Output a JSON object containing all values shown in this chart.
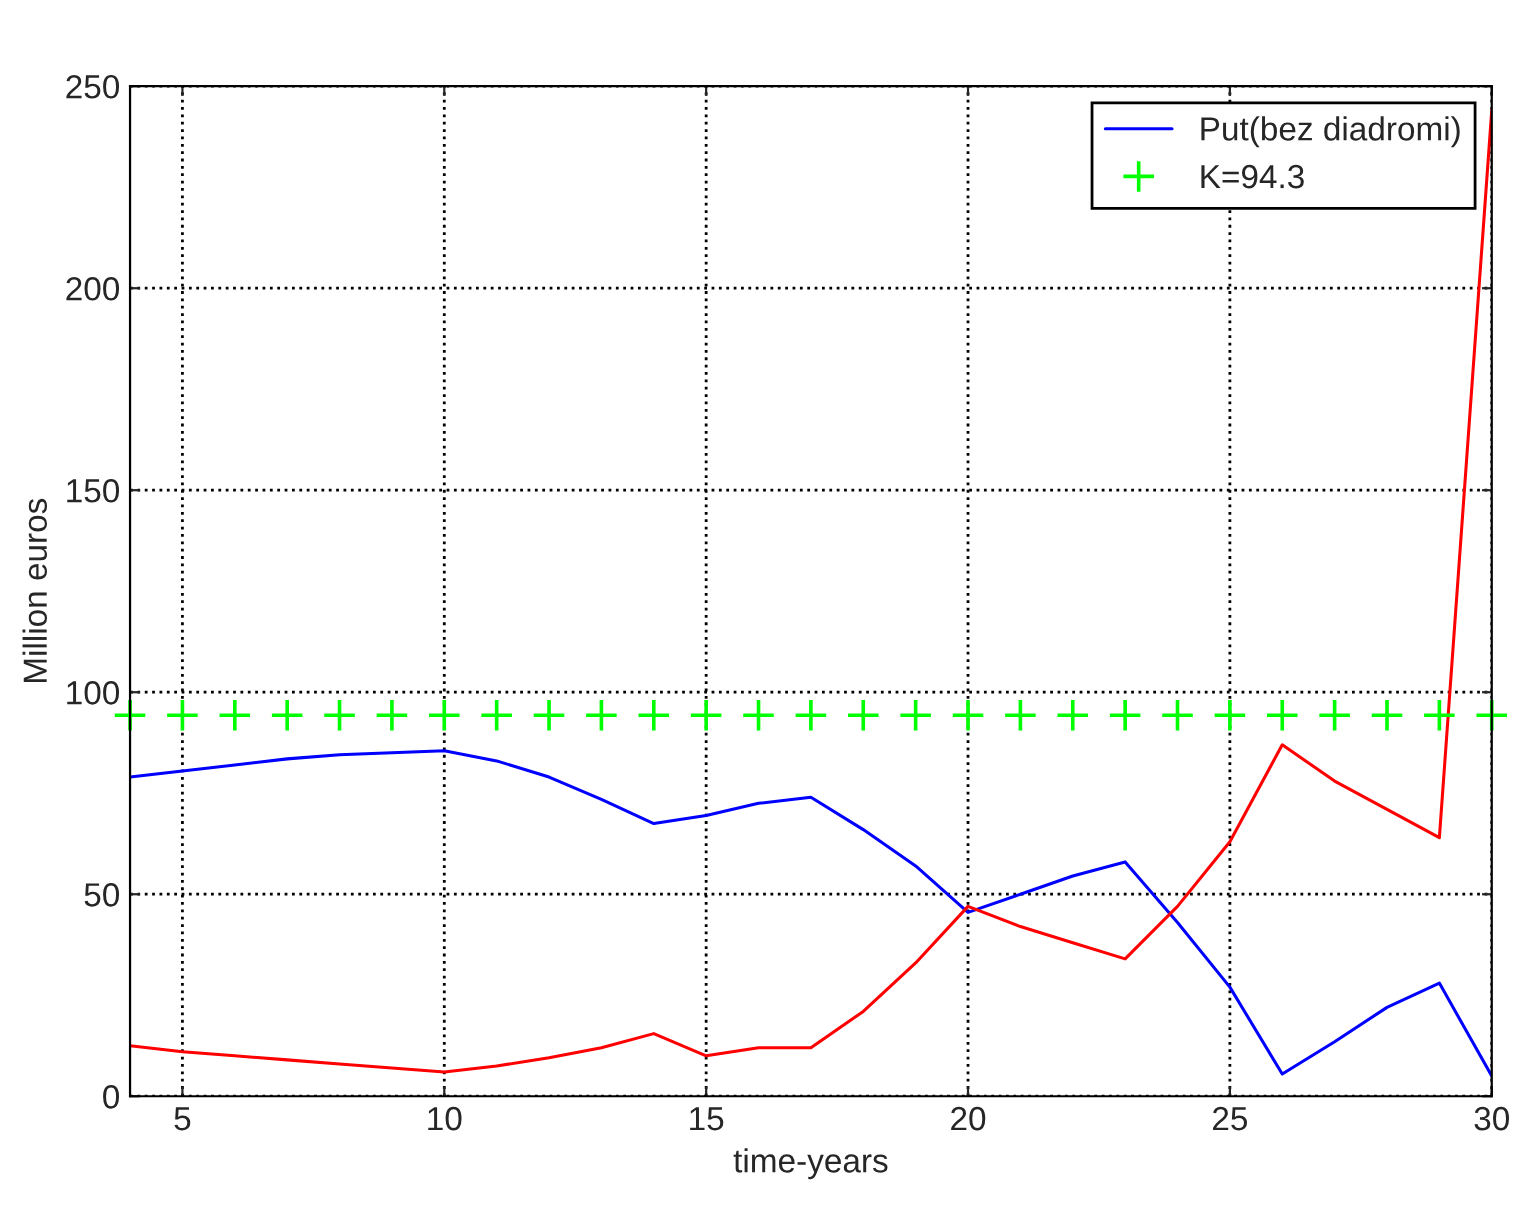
{
  "chart_data": {
    "type": "line",
    "xlabel": "time-years",
    "ylabel": "Million euros",
    "x": [
      4,
      5,
      6,
      7,
      8,
      9,
      10,
      11,
      12,
      13,
      14,
      15,
      16,
      17,
      18,
      19,
      20,
      21,
      22,
      23,
      24,
      25,
      26,
      27,
      28,
      29,
      30
    ],
    "series": [
      {
        "name": "Put(bez diadromi)",
        "color": "#0000ff",
        "values": [
          79,
          80.5,
          82,
          83.5,
          84.5,
          85,
          85.5,
          83,
          79,
          73.5,
          67.5,
          69.5,
          72.5,
          74,
          66,
          57,
          45.5,
          50,
          54.5,
          58,
          43,
          27,
          5.5,
          13.5,
          22,
          28,
          5
        ]
      },
      {
        "color": "#ff0000",
        "values": [
          12.5,
          11,
          10,
          9,
          8,
          7,
          6,
          7.5,
          9.5,
          12,
          15.5,
          10,
          12,
          12,
          21,
          33,
          47,
          42,
          38,
          34,
          47,
          63,
          87,
          78,
          71,
          64,
          244
        ]
      },
      {
        "name": "K=94.3",
        "type": "scatter",
        "marker": "cross",
        "color": "#00ff00",
        "values": [
          94.3,
          94.3,
          94.3,
          94.3,
          94.3,
          94.3,
          94.3,
          94.3,
          94.3,
          94.3,
          94.3,
          94.3,
          94.3,
          94.3,
          94.3,
          94.3,
          94.3,
          94.3,
          94.3,
          94.3,
          94.3,
          94.3,
          94.3,
          94.3,
          94.3,
          94.3,
          94.3
        ]
      }
    ],
    "xlim": [
      4,
      30
    ],
    "xticks": [
      5,
      10,
      15,
      20,
      25,
      30
    ],
    "ylim": [
      0,
      250
    ],
    "yticks": [
      0,
      50,
      100,
      150,
      200,
      250
    ],
    "grid": true,
    "legend": "top right"
  }
}
